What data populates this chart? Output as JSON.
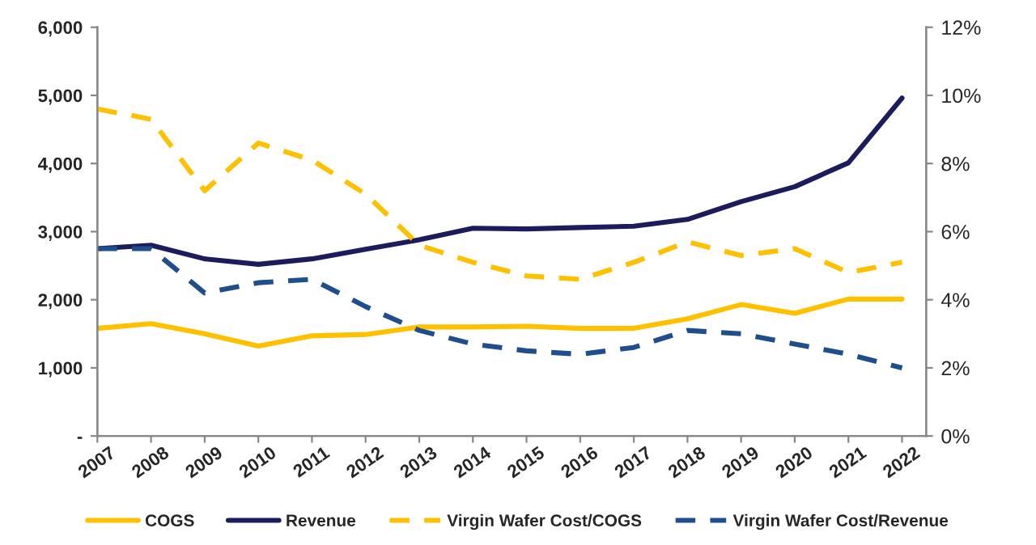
{
  "chart_data": {
    "type": "line",
    "categories": [
      "2007",
      "2008",
      "2009",
      "2010",
      "2011",
      "2012",
      "2013",
      "2014",
      "2015",
      "2016",
      "2017",
      "2018",
      "2019",
      "2020",
      "2021",
      "2022"
    ],
    "series": [
      {
        "name": "COGS",
        "color": "#ffc000",
        "line_style": "solid",
        "values": [
          1580,
          1650,
          1500,
          1320,
          1470,
          1490,
          1600,
          1600,
          1610,
          1580,
          1580,
          1720,
          1930,
          1800,
          2010,
          2010
        ]
      },
      {
        "name": "Revenue",
        "color": "#1c1c5c",
        "line_style": "solid",
        "values": [
          2750,
          2800,
          2600,
          2520,
          2600,
          2740,
          2880,
          3050,
          3040,
          3060,
          3080,
          3180,
          3440,
          3660,
          4010,
          4960
        ]
      },
      {
        "name": "Virgin Wafer Cost/COGS",
        "color": "#ffc000",
        "line_style": "dashed",
        "axis": "y2",
        "values": [
          9.6,
          9.3,
          7.2,
          8.6,
          8.1,
          7.1,
          5.6,
          5.1,
          4.7,
          4.6,
          5.1,
          5.7,
          5.3,
          5.5,
          4.8,
          5.1
        ]
      },
      {
        "name": "Virgin Wafer Cost/Revenue",
        "color": "#1f4e8c",
        "line_style": "dashed",
        "axis": "y2",
        "values": [
          5.5,
          5.5,
          4.2,
          4.5,
          4.6,
          3.8,
          3.1,
          2.7,
          2.5,
          2.4,
          2.6,
          3.1,
          3.0,
          2.7,
          2.4,
          2.0
        ]
      }
    ],
    "ylim": [
      0,
      6000
    ],
    "yticks": [
      {
        "value": 0,
        "label": "-"
      },
      {
        "value": 1000,
        "label": "1,000"
      },
      {
        "value": 2000,
        "label": "2,000"
      },
      {
        "value": 3000,
        "label": "3,000"
      },
      {
        "value": 4000,
        "label": "4,000"
      },
      {
        "value": 5000,
        "label": "5,000"
      },
      {
        "value": 6000,
        "label": "6,000"
      }
    ],
    "y2lim": [
      0,
      12
    ],
    "y2ticks": [
      {
        "value": 0,
        "label": "0%"
      },
      {
        "value": 2,
        "label": "2%"
      },
      {
        "value": 4,
        "label": "4%"
      },
      {
        "value": 6,
        "label": "6%"
      },
      {
        "value": 8,
        "label": "8%"
      },
      {
        "value": 10,
        "label": "10%"
      },
      {
        "value": 12,
        "label": "12%"
      }
    ],
    "grid": false,
    "legend": "bottom",
    "marker": "none"
  }
}
